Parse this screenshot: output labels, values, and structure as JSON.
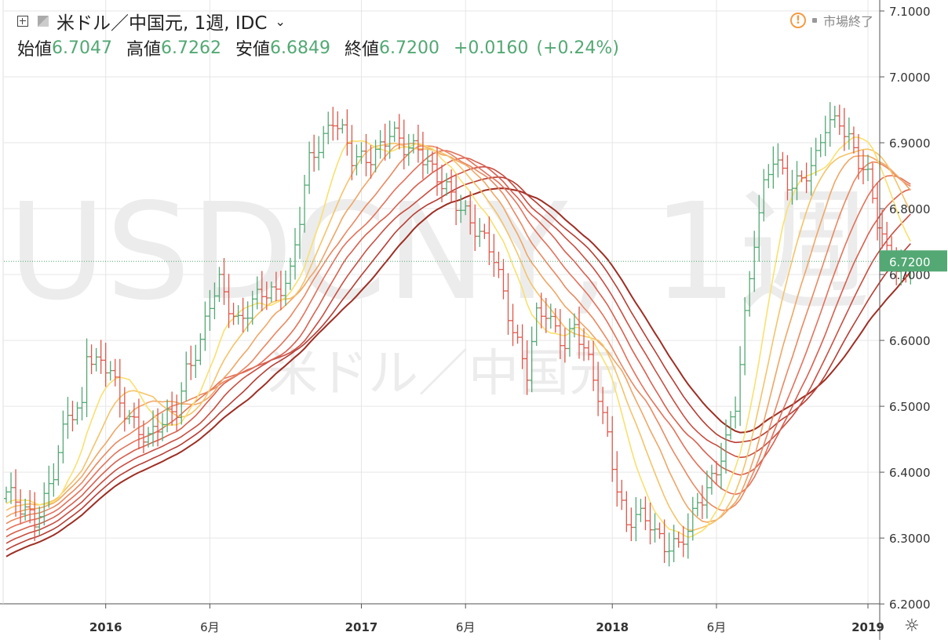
{
  "header": {
    "symbol_title": "米ドル／中国元, 1週, IDC",
    "ohlc": [
      {
        "label": "始値",
        "value": "6.7047"
      },
      {
        "label": "高値",
        "value": "6.7262"
      },
      {
        "label": "安値",
        "value": "6.6849"
      },
      {
        "label": "終値",
        "value": "6.7200"
      }
    ],
    "change": "+0.0160",
    "change_pct": "(+0.24%)",
    "market_status": "市場終了",
    "status_icon": "!"
  },
  "watermark": {
    "main": "USDCNY, 1週",
    "sub": "米ドル／中国元"
  },
  "chart_data": {
    "type": "candlestick-ohlc",
    "period": "1週",
    "title": "米ドル／中国元, 1週, IDC",
    "y_range": [
      6.19,
      7.11
    ],
    "y_ticks": [
      "7.1000",
      "7.0000",
      "6.9000",
      "6.8000",
      "6.7000",
      "6.6000",
      "6.5000",
      "6.4000",
      "6.3000",
      "6.2000"
    ],
    "last_price": "6.7200",
    "x_labels": [
      "2016",
      "6月",
      "2017",
      "6月",
      "2018",
      "6月",
      "2019"
    ],
    "x_label_bold": [
      true,
      false,
      true,
      false,
      true,
      false,
      true
    ],
    "x_label_week_index": [
      21,
      43,
      75,
      97,
      128,
      150,
      182
    ],
    "colors": {
      "up": "#53a874",
      "down": "#e0564a",
      "last_price": "#53a874",
      "grid": "#e6e6e6"
    },
    "anchors": [
      [
        0,
        6.37
      ],
      [
        3,
        6.34
      ],
      [
        6,
        6.33
      ],
      [
        10,
        6.4
      ],
      [
        13,
        6.48
      ],
      [
        16,
        6.5
      ],
      [
        17,
        6.59
      ],
      [
        19,
        6.57
      ],
      [
        22,
        6.55
      ],
      [
        24,
        6.5
      ],
      [
        27,
        6.48
      ],
      [
        30,
        6.45
      ],
      [
        33,
        6.47
      ],
      [
        36,
        6.5
      ],
      [
        38,
        6.56
      ],
      [
        41,
        6.59
      ],
      [
        43,
        6.65
      ],
      [
        45,
        6.69
      ],
      [
        47,
        6.66
      ],
      [
        49,
        6.63
      ],
      [
        51,
        6.64
      ],
      [
        54,
        6.67
      ],
      [
        57,
        6.68
      ],
      [
        60,
        6.7
      ],
      [
        62,
        6.78
      ],
      [
        64,
        6.87
      ],
      [
        66,
        6.9
      ],
      [
        69,
        6.94
      ],
      [
        71,
        6.91
      ],
      [
        73,
        6.87
      ],
      [
        76,
        6.88
      ],
      [
        78,
        6.89
      ],
      [
        81,
        6.91
      ],
      [
        84,
        6.89
      ],
      [
        87,
        6.9
      ],
      [
        89,
        6.87
      ],
      [
        92,
        6.83
      ],
      [
        95,
        6.81
      ],
      [
        97,
        6.8
      ],
      [
        100,
        6.76
      ],
      [
        103,
        6.72
      ],
      [
        105,
        6.67
      ],
      [
        108,
        6.6
      ],
      [
        110,
        6.55
      ],
      [
        112,
        6.63
      ],
      [
        114,
        6.64
      ],
      [
        116,
        6.62
      ],
      [
        118,
        6.6
      ],
      [
        120,
        6.62
      ],
      [
        122,
        6.58
      ],
      [
        125,
        6.52
      ],
      [
        127,
        6.46
      ],
      [
        129,
        6.38
      ],
      [
        131,
        6.31
      ],
      [
        133,
        6.33
      ],
      [
        136,
        6.33
      ],
      [
        139,
        6.29
      ],
      [
        142,
        6.28
      ],
      [
        144,
        6.31
      ],
      [
        146,
        6.36
      ],
      [
        148,
        6.38
      ],
      [
        150,
        6.4
      ],
      [
        152,
        6.44
      ],
      [
        154,
        6.5
      ],
      [
        156,
        6.64
      ],
      [
        158,
        6.76
      ],
      [
        160,
        6.83
      ],
      [
        162,
        6.87
      ],
      [
        165,
        6.84
      ],
      [
        168,
        6.85
      ],
      [
        171,
        6.87
      ],
      [
        173,
        6.92
      ],
      [
        176,
        6.94
      ],
      [
        178,
        6.91
      ],
      [
        180,
        6.87
      ],
      [
        182,
        6.84
      ],
      [
        184,
        6.78
      ],
      [
        186,
        6.74
      ],
      [
        188,
        6.72
      ],
      [
        190,
        6.69
      ],
      [
        191,
        6.72
      ]
    ],
    "ma_periods": [
      10,
      15,
      20,
      25,
      30,
      35,
      40,
      45,
      50
    ],
    "ma_colors": [
      "#f9e06f",
      "#f5c36a",
      "#f0a665",
      "#ea8860",
      "#e4715a",
      "#d85f4e",
      "#c94d41",
      "#b73d34",
      "#9e2e24"
    ],
    "indicator": "Multiple moving averages ribbon"
  }
}
